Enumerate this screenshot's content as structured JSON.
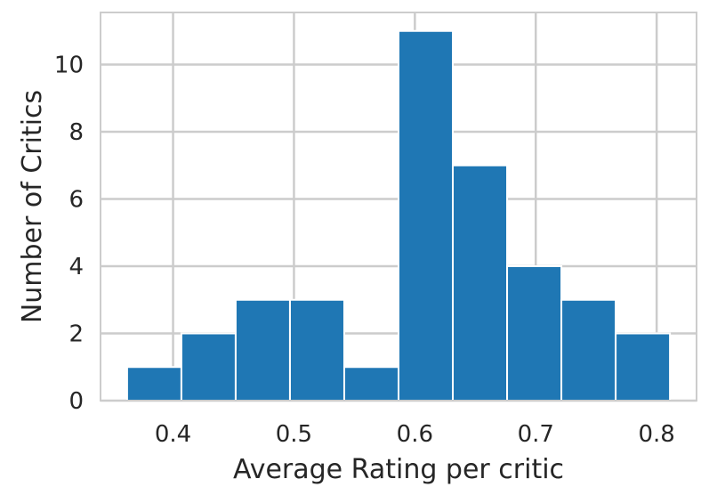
{
  "chart_data": {
    "type": "bar",
    "subtype": "histogram",
    "xlabel": "Average Rating per critic",
    "ylabel": "Number of Critics",
    "bin_edges": [
      0.362,
      0.4069,
      0.4518,
      0.4967,
      0.5416,
      0.5865,
      0.6314,
      0.6763,
      0.7212,
      0.7661,
      0.811
    ],
    "values": [
      1,
      2,
      3,
      3,
      1,
      11,
      7,
      4,
      3,
      2
    ],
    "xlim": [
      0.34,
      0.833
    ],
    "ylim": [
      0,
      11.55
    ],
    "xticks": [
      0.4,
      0.5,
      0.6,
      0.7,
      0.8
    ],
    "xtick_labels": [
      "0.4",
      "0.5",
      "0.6",
      "0.7",
      "0.8"
    ],
    "yticks": [
      0,
      2,
      4,
      6,
      8,
      10
    ],
    "ytick_labels": [
      "0",
      "2",
      "4",
      "6",
      "8",
      "10"
    ],
    "grid": true,
    "bar_color": "#1f77b4",
    "grid_color": "#cccccc",
    "text_color": "#262626"
  }
}
